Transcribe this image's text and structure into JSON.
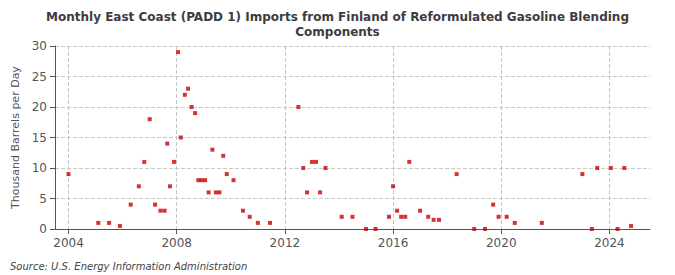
{
  "chart_data": {
    "type": "scatter",
    "title": "Monthly East Coast (PADD 1) Imports from Finland of Reformulated Gasoline Blending\nComponents",
    "ylabel": "Thousand Barrels per Day",
    "source": "Source: U.S. Energy Information Administration",
    "color": "#cc0000",
    "marker": "square",
    "grid": true,
    "xlim": [
      2003.5,
      2025.5
    ],
    "xticks": [
      2004,
      2008,
      2012,
      2016,
      2020,
      2024
    ],
    "ylim": [
      0,
      30
    ],
    "yticks": [
      0,
      5,
      10,
      15,
      20,
      25,
      30
    ],
    "x": [
      2004.0,
      2005.1,
      2005.5,
      2005.9,
      2006.3,
      2006.6,
      2006.8,
      2007.0,
      2007.2,
      2007.4,
      2007.55,
      2007.65,
      2007.75,
      2007.9,
      2008.05,
      2008.15,
      2008.3,
      2008.42,
      2008.55,
      2008.68,
      2008.8,
      2008.92,
      2009.05,
      2009.18,
      2009.32,
      2009.45,
      2009.58,
      2009.72,
      2009.85,
      2010.1,
      2010.45,
      2010.7,
      2011.0,
      2011.45,
      2012.5,
      2012.68,
      2012.82,
      2013.0,
      2013.15,
      2013.3,
      2013.5,
      2014.1,
      2014.5,
      2015.0,
      2015.35,
      2015.85,
      2016.0,
      2016.15,
      2016.3,
      2016.45,
      2016.6,
      2017.0,
      2017.3,
      2017.5,
      2017.7,
      2018.35,
      2019.0,
      2019.4,
      2019.7,
      2019.9,
      2020.2,
      2020.5,
      2021.5,
      2023.0,
      2023.35,
      2023.55,
      2024.05,
      2024.3,
      2024.55,
      2024.8
    ],
    "values": [
      9,
      1,
      1,
      0.5,
      4,
      7,
      11,
      18,
      4,
      3,
      3,
      14,
      7,
      11,
      29,
      15,
      22,
      23,
      20,
      19,
      8,
      8,
      8,
      6,
      13,
      6,
      6,
      12,
      9,
      8,
      3,
      2,
      1,
      1,
      20,
      10,
      6,
      11,
      11,
      6,
      10,
      2,
      2,
      0,
      0,
      2,
      7,
      3,
      2,
      2,
      11,
      3,
      2,
      1.5,
      1.5,
      9,
      0,
      0,
      4,
      2,
      2,
      1,
      1,
      9,
      0,
      10,
      10,
      0,
      10,
      0.5
    ]
  }
}
